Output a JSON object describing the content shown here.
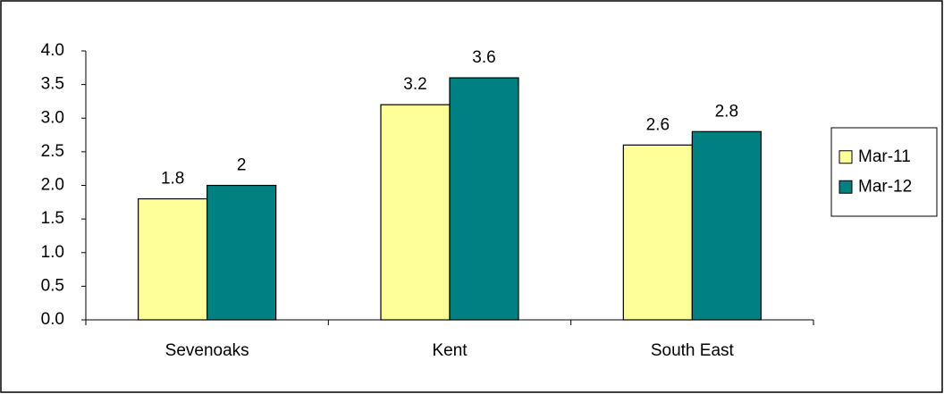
{
  "chart_data": {
    "type": "bar",
    "categories": [
      "Sevenoaks",
      "Kent",
      "South East"
    ],
    "series": [
      {
        "name": "Mar-11",
        "color": "#ffff99",
        "values": [
          1.8,
          3.2,
          2.6
        ]
      },
      {
        "name": "Mar-12",
        "color": "#008080",
        "values": [
          2,
          3.6,
          2.8
        ]
      }
    ],
    "ylim": [
      0,
      4
    ],
    "yticks": [
      {
        "value": 0,
        "label": "0.0"
      },
      0.5,
      {
        "value": 1,
        "label": "1.0"
      },
      1.5,
      {
        "value": 2,
        "label": "2.0"
      },
      2.5,
      {
        "value": 3,
        "label": "3.0"
      },
      3.5,
      {
        "value": 4,
        "label": "4.0"
      }
    ],
    "grid": false,
    "legend": "right"
  }
}
